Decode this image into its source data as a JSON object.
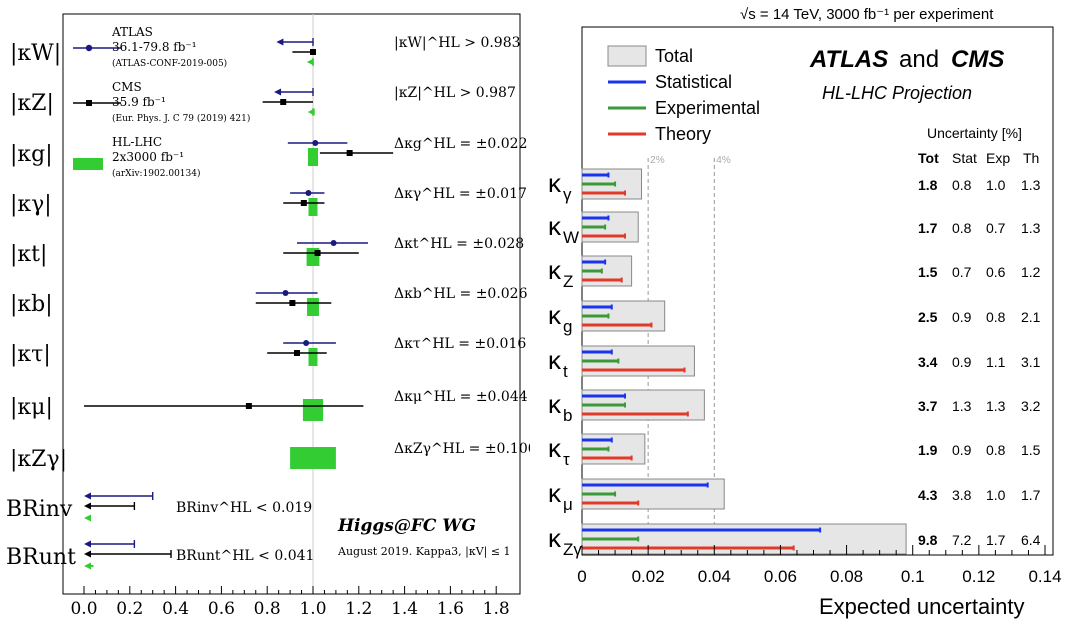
{
  "left_panel": {
    "legend": [
      {
        "name": "ATLAS",
        "lumi": "36.1-79.8 fb⁻¹",
        "ref": "(ATLAS-CONF-2019-005)",
        "color": "#1a1a80",
        "marker": "circle"
      },
      {
        "name": "CMS",
        "lumi": "35.9 fb⁻¹",
        "ref": "(Eur. Phys. J. C 79 (2019) 421)",
        "color": "#000000",
        "marker": "square"
      },
      {
        "name": "HL-LHC",
        "lumi": "2x3000 fb⁻¹",
        "ref": "(arXiv:1902.00134)",
        "color": "#33cc33",
        "marker": "box"
      }
    ],
    "watermark": "Higgs@FC WG",
    "footnote": "August 2019. Kappa3, |κV| ≤ 1",
    "colors": {
      "atlas": "#1a1a80",
      "cms": "#000000",
      "hllhc": "#33cc33"
    }
  },
  "right_panel": {
    "top_label": "√s = 14 TeV, 3000 fb⁻¹ per experiment",
    "title_atlas": "ATLAS",
    "title_and": "and",
    "title_cms": "CMS",
    "subtitle": "HL-LHC Projection",
    "legend": [
      {
        "name": "Total",
        "color": "#e6e6e6"
      },
      {
        "name": "Statistical",
        "color": "#1a33ee"
      },
      {
        "name": "Experimental",
        "color": "#3a9a3a"
      },
      {
        "name": "Theory",
        "color": "#e03a2a"
      }
    ],
    "table_header": "Uncertainty [%]",
    "col_headers": [
      "Tot",
      "Stat",
      "Exp",
      "Th"
    ],
    "ref_lines": [
      "2%",
      "4%"
    ],
    "colors": {
      "total": "#e6e6e6",
      "stat": "#1a33ee",
      "exp": "#3a9a3a",
      "th": "#e03a2a"
    }
  },
  "chart_data": [
    {
      "type": "scatter",
      "title": "",
      "xlabel": "",
      "ylabel": "",
      "xlim": [
        -0.1,
        1.9
      ],
      "xticks": [
        "0.0",
        "0.2",
        "0.4",
        "0.6",
        "0.8",
        "1.0",
        "1.2",
        "1.4",
        "1.6",
        "1.8"
      ],
      "categories": [
        {
          "label": "|κW|",
          "annotation": "|κW|^HL > 0.983",
          "atlas": {
            "arrow_from": 1.0,
            "arrow_to": 0.84
          },
          "cms": {
            "value": 1.0,
            "low": 0.91,
            "high": 1.0
          },
          "hllhc": {
            "arrow_from": 1.0,
            "arrow_to": 0.983
          }
        },
        {
          "label": "|κZ|",
          "annotation": "|κZ|^HL > 0.987",
          "atlas": {
            "arrow_from": 1.0,
            "arrow_to": 0.83
          },
          "cms": {
            "value": 0.87,
            "low": 0.78,
            "high": 1.0
          },
          "hllhc": {
            "arrow_from": 1.0,
            "arrow_to": 0.987
          }
        },
        {
          "label": "|κg|",
          "annotation": "Δκg^HL = ±0.022",
          "atlas": {
            "value": 1.01,
            "low": 0.89,
            "high": 1.15
          },
          "cms": {
            "value": 1.16,
            "low": 1.03,
            "high": 1.35
          },
          "hllhc": {
            "center": 1.0,
            "half_width": 0.022
          }
        },
        {
          "label": "|κγ|",
          "annotation": "Δκγ^HL = ±0.017",
          "atlas": {
            "value": 0.98,
            "low": 0.9,
            "high": 1.05
          },
          "cms": {
            "value": 0.96,
            "low": 0.87,
            "high": 1.05
          },
          "hllhc": {
            "center": 1.0,
            "half_width": 0.017
          }
        },
        {
          "label": "|κt|",
          "annotation": "Δκt^HL = ±0.028",
          "atlas": {
            "value": 1.09,
            "low": 0.93,
            "high": 1.24
          },
          "cms": {
            "value": 1.02,
            "low": 0.87,
            "high": 1.2
          },
          "hllhc": {
            "center": 1.0,
            "half_width": 0.028
          }
        },
        {
          "label": "|κb|",
          "annotation": "Δκb^HL = ±0.026",
          "atlas": {
            "value": 0.88,
            "low": 0.75,
            "high": 1.02
          },
          "cms": {
            "value": 0.91,
            "low": 0.75,
            "high": 1.08
          },
          "hllhc": {
            "center": 1.0,
            "half_width": 0.026
          }
        },
        {
          "label": "|κτ|",
          "annotation": "Δκτ^HL = ±0.016",
          "atlas": {
            "value": 0.97,
            "low": 0.87,
            "high": 1.1
          },
          "cms": {
            "value": 0.93,
            "low": 0.8,
            "high": 1.06
          },
          "hllhc": {
            "center": 1.0,
            "half_width": 0.016
          }
        },
        {
          "label": "|κμ|",
          "annotation": "Δκμ^HL = ±0.044",
          "cms": {
            "value": 0.72,
            "low": 0.0,
            "high": 1.22
          },
          "hllhc": {
            "center": 1.0,
            "half_width": 0.044
          }
        },
        {
          "label": "|κZγ|",
          "annotation": "ΔκZγ^HL = ±0.100",
          "hllhc": {
            "center": 1.0,
            "half_width": 0.1
          }
        },
        {
          "label": "BRinv",
          "annotation": "BRinv^HL < 0.019",
          "atlas": {
            "arrow_from": 0.3,
            "arrow_to": 0.0
          },
          "cms": {
            "arrow_from": 0.22,
            "arrow_to": 0.0
          },
          "hllhc": {
            "arrow_from": 0.019,
            "arrow_to": 0.0
          }
        },
        {
          "label": "BRunt",
          "annotation": "BRunt^HL < 0.041",
          "atlas": {
            "arrow_from": 0.22,
            "arrow_to": 0.0
          },
          "cms": {
            "arrow_from": 0.38,
            "arrow_to": 0.0
          },
          "hllhc": {
            "arrow_from": 0.041,
            "arrow_to": 0.0
          }
        }
      ]
    },
    {
      "type": "bar",
      "title": "",
      "xlabel": "Expected uncertainty",
      "ylabel": "",
      "xlim": [
        0,
        0.14
      ],
      "xticks": [
        "0",
        "0.02",
        "0.04",
        "0.06",
        "0.08",
        "0.1",
        "0.12",
        "0.14"
      ],
      "categories": [
        "κγ",
        "κW",
        "κZ",
        "κg",
        "κt",
        "κb",
        "κτ",
        "κμ",
        "κZγ"
      ],
      "series": [
        {
          "name": "Total",
          "values": [
            0.018,
            0.017,
            0.015,
            0.025,
            0.034,
            0.037,
            0.019,
            0.043,
            0.098
          ]
        },
        {
          "name": "Statistical",
          "values": [
            0.008,
            0.008,
            0.007,
            0.009,
            0.009,
            0.013,
            0.009,
            0.038,
            0.072
          ]
        },
        {
          "name": "Experimental",
          "values": [
            0.01,
            0.007,
            0.006,
            0.008,
            0.011,
            0.013,
            0.008,
            0.01,
            0.017
          ]
        },
        {
          "name": "Theory",
          "values": [
            0.013,
            0.013,
            0.012,
            0.021,
            0.031,
            0.032,
            0.015,
            0.017,
            0.064
          ]
        }
      ],
      "table": [
        [
          "1.8",
          "0.8",
          "1.0",
          "1.3"
        ],
        [
          "1.7",
          "0.8",
          "0.7",
          "1.3"
        ],
        [
          "1.5",
          "0.7",
          "0.6",
          "1.2"
        ],
        [
          "2.5",
          "0.9",
          "0.8",
          "2.1"
        ],
        [
          "3.4",
          "0.9",
          "1.1",
          "3.1"
        ],
        [
          "3.7",
          "1.3",
          "1.3",
          "3.2"
        ],
        [
          "1.9",
          "0.9",
          "0.8",
          "1.5"
        ],
        [
          "4.3",
          "3.8",
          "1.0",
          "1.7"
        ],
        [
          "9.8",
          "7.2",
          "1.7",
          "6.4"
        ]
      ],
      "ref_lines": [
        0.02,
        0.04
      ]
    }
  ]
}
